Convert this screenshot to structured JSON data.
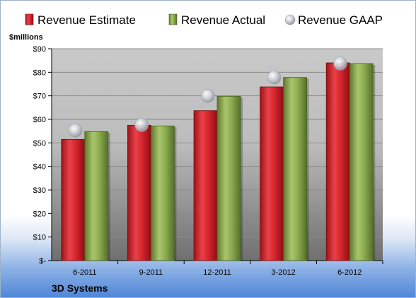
{
  "chart_data": {
    "type": "bar",
    "unit_label": "$millions",
    "footer": "3D Systems",
    "categories": [
      "6-2011",
      "9-2011",
      "12-2011",
      "3-2012",
      "6-2012"
    ],
    "series": [
      {
        "name": "Revenue Estimate",
        "kind": "bar",
        "color": "#d9262e",
        "values": [
          51.5,
          57.5,
          63.7,
          73.8,
          84.0
        ]
      },
      {
        "name": "Revenue Actual",
        "kind": "bar",
        "color": "#8fae52",
        "values": [
          54.8,
          57.2,
          69.8,
          77.8,
          83.7
        ]
      },
      {
        "name": "Revenue GAAP",
        "kind": "marker",
        "color": "#c9ccd3",
        "values": [
          55.3,
          57.6,
          70.0,
          77.8,
          83.7
        ]
      }
    ],
    "ylim": [
      0,
      90
    ],
    "yticks": [
      0,
      10,
      20,
      30,
      40,
      50,
      60,
      70,
      80,
      90
    ],
    "ytick_labels": [
      "$-",
      "$10",
      "$20",
      "$30",
      "$40",
      "$50",
      "$60",
      "$70",
      "$80",
      "$90"
    ],
    "grid": true,
    "legend": "top"
  }
}
